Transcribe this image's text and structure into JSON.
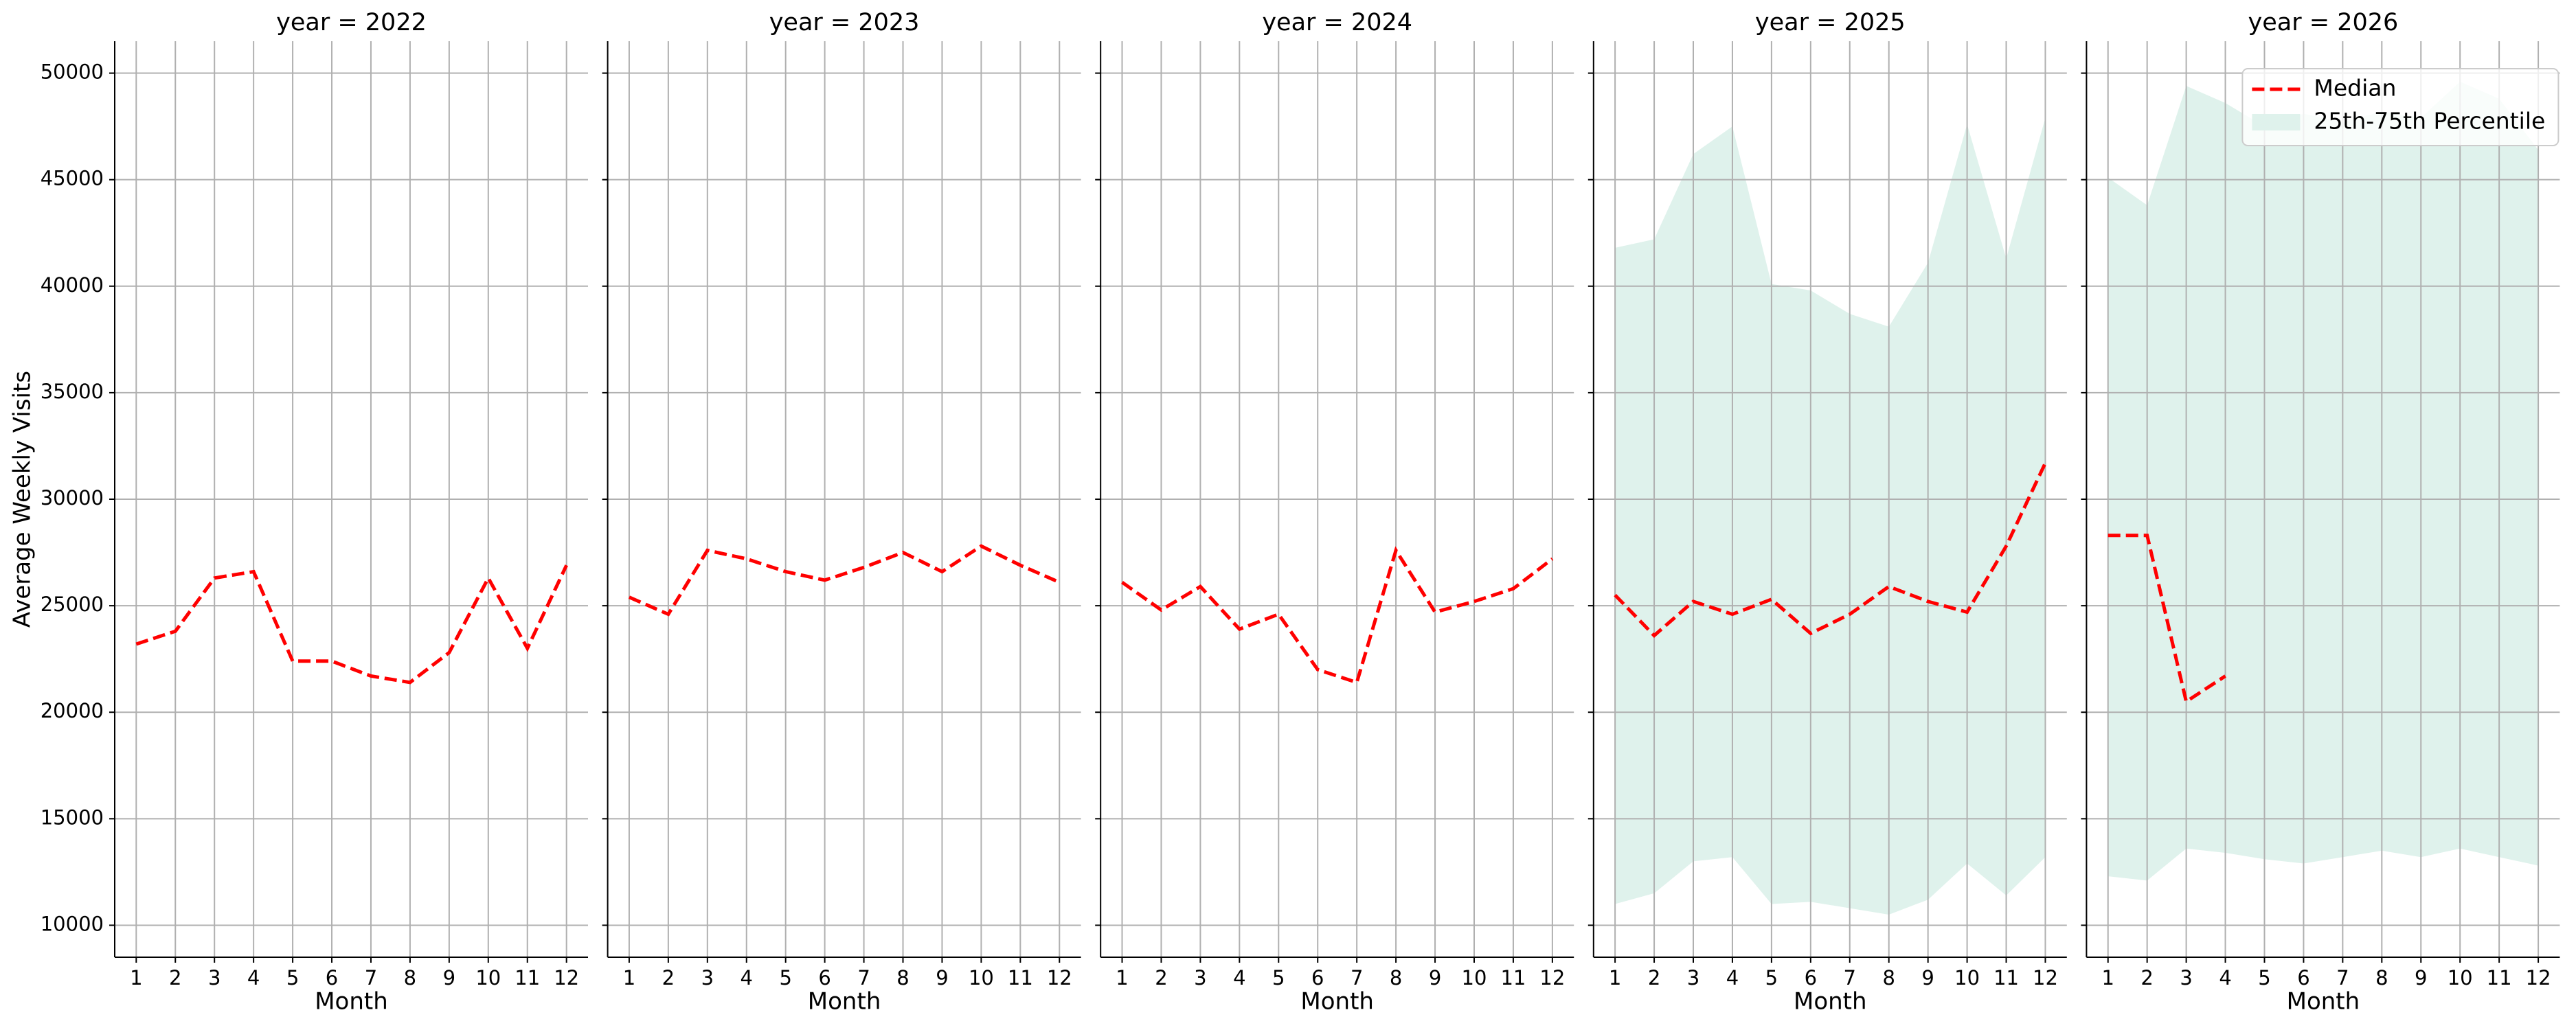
{
  "chart_data": [
    {
      "type": "line",
      "title": "year = 2022",
      "ylabel": "Average Weekly Visits",
      "xlabel": "Month",
      "x": [
        1,
        2,
        3,
        4,
        5,
        6,
        7,
        8,
        9,
        10,
        11,
        12
      ],
      "xlim": [
        0.45,
        12.55
      ],
      "xticks": [
        1,
        2,
        3,
        4,
        5,
        6,
        7,
        8,
        9,
        10,
        11,
        12
      ],
      "ylim": [
        8500,
        51500
      ],
      "yticks": [
        10000,
        15000,
        20000,
        25000,
        30000,
        35000,
        40000,
        45000,
        50000
      ],
      "grid": true,
      "series": [
        {
          "color": "#ff0000",
          "values": [
            23200,
            23800,
            26300,
            26600,
            22400,
            22400,
            21700,
            21400,
            22800,
            26300,
            23000,
            26900
          ]
        }
      ]
    },
    {
      "type": "line",
      "title": "year = 2023",
      "xlabel": "Month",
      "x": [
        1,
        2,
        3,
        4,
        5,
        6,
        7,
        8,
        9,
        10,
        11,
        12
      ],
      "xlim": [
        0.45,
        12.55
      ],
      "xticks": [
        1,
        2,
        3,
        4,
        5,
        6,
        7,
        8,
        9,
        10,
        11,
        12
      ],
      "ylim": [
        8500,
        51500
      ],
      "yticks": [
        10000,
        15000,
        20000,
        25000,
        30000,
        35000,
        40000,
        45000,
        50000
      ],
      "grid": true,
      "series": [
        {
          "color": "#ff0000",
          "values": [
            25400,
            24600,
            27600,
            27200,
            26600,
            26200,
            26800,
            27500,
            26600,
            27800,
            26900,
            26100
          ]
        }
      ]
    },
    {
      "type": "line",
      "title": "year = 2024",
      "xlabel": "Month",
      "x": [
        1,
        2,
        3,
        4,
        5,
        6,
        7,
        8,
        9,
        10,
        11,
        12
      ],
      "xlim": [
        0.45,
        12.55
      ],
      "xticks": [
        1,
        2,
        3,
        4,
        5,
        6,
        7,
        8,
        9,
        10,
        11,
        12
      ],
      "ylim": [
        8500,
        51500
      ],
      "yticks": [
        10000,
        15000,
        20000,
        25000,
        30000,
        35000,
        40000,
        45000,
        50000
      ],
      "grid": true,
      "series": [
        {
          "color": "#ff0000",
          "values": [
            26100,
            24800,
            25900,
            23900,
            24600,
            22000,
            21400,
            27600,
            24700,
            25200,
            25800,
            27200
          ]
        }
      ]
    },
    {
      "type": "line",
      "title": "year = 2025",
      "xlabel": "Month",
      "x": [
        1,
        2,
        3,
        4,
        5,
        6,
        7,
        8,
        9,
        10,
        11,
        12
      ],
      "xlim": [
        0.45,
        12.55
      ],
      "xticks": [
        1,
        2,
        3,
        4,
        5,
        6,
        7,
        8,
        9,
        10,
        11,
        12
      ],
      "ylim": [
        8500,
        51500
      ],
      "yticks": [
        10000,
        15000,
        20000,
        25000,
        30000,
        35000,
        40000,
        45000,
        50000
      ],
      "grid": true,
      "band": {
        "color": "#dff2ec",
        "lower": [
          11000,
          11500,
          13000,
          13200,
          11000,
          11100,
          10800,
          10500,
          11200,
          12900,
          11400,
          13200
        ],
        "upper": [
          41800,
          42200,
          46200,
          47500,
          40100,
          39800,
          38700,
          38100,
          41100,
          47600,
          41300,
          47900
        ]
      },
      "series": [
        {
          "color": "#ff0000",
          "values": [
            25500,
            23600,
            25200,
            24600,
            25300,
            23700,
            24600,
            25900,
            25200,
            24700,
            27800,
            31700
          ]
        }
      ]
    },
    {
      "type": "line",
      "title": "year = 2026",
      "xlabel": "Month",
      "x": [
        1,
        2,
        3,
        4,
        5,
        6,
        7,
        8,
        9,
        10,
        11,
        12
      ],
      "xlim": [
        0.45,
        12.55
      ],
      "xticks": [
        1,
        2,
        3,
        4,
        5,
        6,
        7,
        8,
        9,
        10,
        11,
        12
      ],
      "ylim": [
        8500,
        51500
      ],
      "yticks": [
        10000,
        15000,
        20000,
        25000,
        30000,
        35000,
        40000,
        45000,
        50000
      ],
      "grid": true,
      "legend": "upper right",
      "band": {
        "name": "25th-75th Percentile",
        "color": "#dff2ec",
        "lower": [
          12300,
          12100,
          13600,
          13400,
          13100,
          12900,
          13200,
          13500,
          13200,
          13600,
          13200,
          12800
        ],
        "upper": [
          45100,
          43800,
          49400,
          48600,
          47500,
          48100,
          47700,
          48200,
          47900,
          49600,
          48800,
          46400
        ]
      },
      "series": [
        {
          "name": "Median",
          "color": "#ff0000",
          "values": [
            28300,
            28300,
            20500,
            21700,
            null,
            null,
            null,
            null,
            null,
            null,
            null,
            null
          ]
        }
      ]
    }
  ]
}
